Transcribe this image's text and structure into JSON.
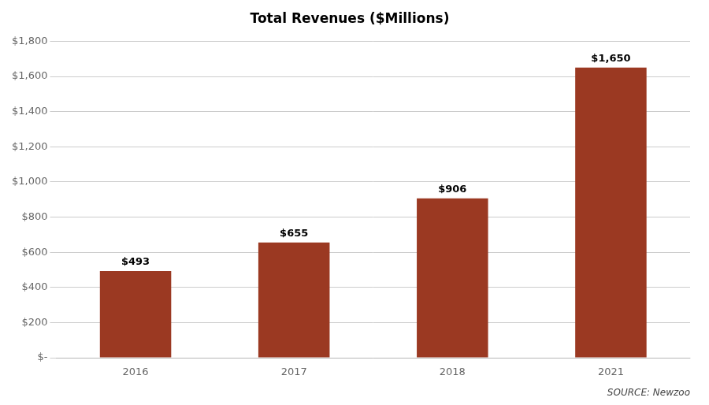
{
  "chart_data": {
    "type": "bar",
    "title": "Total Revenues ($Millions)",
    "categories": [
      "2016",
      "2017",
      "2018",
      "2021"
    ],
    "values": [
      493,
      655,
      906,
      1650
    ],
    "value_labels": [
      "$493",
      "$655",
      "$906",
      "$1,650"
    ],
    "data_labels": true,
    "color": "#9B3922",
    "ylim": [
      0,
      1800
    ],
    "yticks": [
      {
        "value": 0,
        "label": "$-"
      },
      {
        "value": 200,
        "label": "$200"
      },
      {
        "value": 400,
        "label": "$400"
      },
      {
        "value": 600,
        "label": "$600"
      },
      {
        "value": 800,
        "label": "$800"
      },
      {
        "value": 1000,
        "label": "$1,000"
      },
      {
        "value": 1200,
        "label": "$1,200"
      },
      {
        "value": 1400,
        "label": "$1,400"
      },
      {
        "value": 1600,
        "label": "$1,600"
      },
      {
        "value": 1800,
        "label": "$1,800"
      }
    ],
    "grid": true,
    "annotations": [
      "SOURCE: Newzoo"
    ]
  }
}
